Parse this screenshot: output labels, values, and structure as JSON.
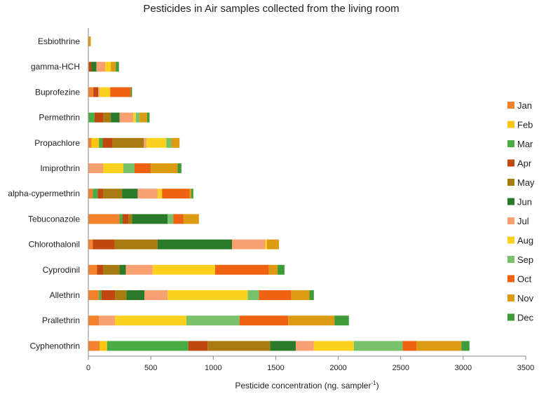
{
  "chart_data": {
    "type": "bar",
    "orientation": "horizontal",
    "stacked": true,
    "title": "Pesticides in Air samples collected from the living room",
    "xlabel": "Pesticide concentration (ng. sampler",
    "xlabel_sup": "-1",
    "xlabel_end": ")",
    "ylabel": "",
    "xlim": [
      0,
      3500
    ],
    "xticks": [
      0,
      500,
      1000,
      1500,
      2000,
      2500,
      3000,
      3500
    ],
    "grid": false,
    "legend": "right",
    "categories": [
      "Esbiothrine",
      "gamma-HCH",
      "Buprofezine",
      "Permethrin",
      "Propachlore",
      "Imiprothrin",
      "alpha-cypermethrin",
      "Tebuconazole",
      "Chlorothalonil",
      "Cyprodinil",
      "Allethrin",
      "Prallethrin",
      "Cyphenothrin"
    ],
    "series": [
      {
        "name": "Jan",
        "color": "#f4812c",
        "values": [
          0,
          5,
          40,
          0,
          25,
          0,
          35,
          250,
          35,
          70,
          85,
          85,
          90
        ]
      },
      {
        "name": "Feb",
        "color": "#fbc514",
        "values": [
          0,
          0,
          0,
          0,
          60,
          0,
          0,
          0,
          0,
          0,
          0,
          0,
          60
        ]
      },
      {
        "name": "Mar",
        "color": "#49ac45",
        "values": [
          0,
          0,
          0,
          50,
          30,
          0,
          40,
          25,
          0,
          0,
          20,
          0,
          650
        ]
      },
      {
        "name": "Apr",
        "color": "#c0480f",
        "values": [
          0,
          20,
          40,
          70,
          80,
          0,
          45,
          45,
          175,
          50,
          110,
          0,
          155
        ]
      },
      {
        "name": "May",
        "color": "#a87b10",
        "values": [
          0,
          0,
          0,
          60,
          250,
          0,
          150,
          30,
          345,
          130,
          90,
          0,
          500
        ]
      },
      {
        "name": "Jun",
        "color": "#2a7a2a",
        "values": [
          0,
          40,
          0,
          70,
          0,
          0,
          125,
          285,
          595,
          50,
          145,
          0,
          205
        ]
      },
      {
        "name": "Jul",
        "color": "#f8a070",
        "values": [
          0,
          70,
          10,
          110,
          20,
          120,
          160,
          0,
          265,
          215,
          185,
          130,
          145
        ]
      },
      {
        "name": "Aug",
        "color": "#fbd120",
        "values": [
          0,
          45,
          85,
          20,
          160,
          160,
          35,
          0,
          15,
          500,
          640,
          570,
          320
        ]
      },
      {
        "name": "Sep",
        "color": "#78c26c",
        "values": [
          0,
          0,
          0,
          30,
          40,
          90,
          0,
          45,
          0,
          0,
          90,
          425,
          390
        ]
      },
      {
        "name": "Oct",
        "color": "#ee6212",
        "values": [
          0,
          0,
          165,
          0,
          0,
          130,
          220,
          80,
          0,
          430,
          260,
          390,
          110
        ]
      },
      {
        "name": "Nov",
        "color": "#dc9b12",
        "values": [
          20,
          40,
          0,
          60,
          65,
          215,
          15,
          125,
          95,
          70,
          145,
          370,
          360
        ]
      },
      {
        "name": "Dec",
        "color": "#3f9a3a",
        "values": [
          0,
          25,
          10,
          20,
          0,
          30,
          15,
          0,
          0,
          55,
          35,
          115,
          65
        ]
      }
    ]
  }
}
